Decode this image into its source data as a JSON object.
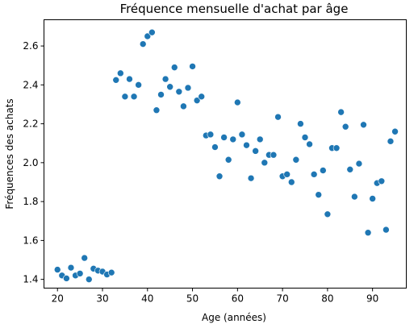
{
  "chart_data": {
    "type": "scatter",
    "title": "Fréquence mensuelle d'achat par âge",
    "xlabel": "Age (années)",
    "ylabel": "Fréquences des achats",
    "xlim": [
      17,
      97.5
    ],
    "ylim": [
      1.355,
      2.735
    ],
    "xticks": [
      20,
      30,
      40,
      50,
      60,
      70,
      80,
      90
    ],
    "xtick_labels": [
      "20",
      "30",
      "40",
      "50",
      "60",
      "70",
      "80",
      "90"
    ],
    "yticks": [
      1.4,
      1.6,
      1.8,
      2.0,
      2.2,
      2.4,
      2.6
    ],
    "ytick_labels": [
      "1.4",
      "1.6",
      "1.8",
      "2.0",
      "2.2",
      "2.4",
      "2.6"
    ],
    "grid": false,
    "legend": "none",
    "color": "#1f77b4",
    "points": [
      {
        "x": 20,
        "y": 1.45
      },
      {
        "x": 21,
        "y": 1.42
      },
      {
        "x": 22,
        "y": 1.405
      },
      {
        "x": 23,
        "y": 1.46
      },
      {
        "x": 24,
        "y": 1.42
      },
      {
        "x": 25,
        "y": 1.43
      },
      {
        "x": 26,
        "y": 1.51
      },
      {
        "x": 27,
        "y": 1.4
      },
      {
        "x": 28,
        "y": 1.455
      },
      {
        "x": 29,
        "y": 1.445
      },
      {
        "x": 30,
        "y": 1.44
      },
      {
        "x": 31,
        "y": 1.425
      },
      {
        "x": 32,
        "y": 1.435
      },
      {
        "x": 33,
        "y": 2.425
      },
      {
        "x": 34,
        "y": 2.46
      },
      {
        "x": 35,
        "y": 2.34
      },
      {
        "x": 36,
        "y": 2.43
      },
      {
        "x": 37,
        "y": 2.34
      },
      {
        "x": 38,
        "y": 2.4
      },
      {
        "x": 39,
        "y": 2.61
      },
      {
        "x": 40,
        "y": 2.65
      },
      {
        "x": 41,
        "y": 2.67
      },
      {
        "x": 42,
        "y": 2.27
      },
      {
        "x": 43,
        "y": 2.35
      },
      {
        "x": 44,
        "y": 2.43
      },
      {
        "x": 45,
        "y": 2.39
      },
      {
        "x": 46,
        "y": 2.49
      },
      {
        "x": 47,
        "y": 2.365
      },
      {
        "x": 48,
        "y": 2.29
      },
      {
        "x": 49,
        "y": 2.385
      },
      {
        "x": 50,
        "y": 2.495
      },
      {
        "x": 51,
        "y": 2.32
      },
      {
        "x": 52,
        "y": 2.34
      },
      {
        "x": 53,
        "y": 2.14
      },
      {
        "x": 54,
        "y": 2.145
      },
      {
        "x": 55,
        "y": 2.08
      },
      {
        "x": 56,
        "y": 1.93
      },
      {
        "x": 57,
        "y": 2.13
      },
      {
        "x": 58,
        "y": 2.015
      },
      {
        "x": 59,
        "y": 2.12
      },
      {
        "x": 60,
        "y": 2.31
      },
      {
        "x": 61,
        "y": 2.145
      },
      {
        "x": 62,
        "y": 2.09
      },
      {
        "x": 63,
        "y": 1.92
      },
      {
        "x": 64,
        "y": 2.06
      },
      {
        "x": 65,
        "y": 2.12
      },
      {
        "x": 66,
        "y": 2.0
      },
      {
        "x": 67,
        "y": 2.04
      },
      {
        "x": 68,
        "y": 2.04
      },
      {
        "x": 69,
        "y": 2.235
      },
      {
        "x": 70,
        "y": 1.93
      },
      {
        "x": 71,
        "y": 1.94
      },
      {
        "x": 72,
        "y": 1.9
      },
      {
        "x": 73,
        "y": 2.015
      },
      {
        "x": 74,
        "y": 2.2
      },
      {
        "x": 75,
        "y": 2.13
      },
      {
        "x": 76,
        "y": 2.095
      },
      {
        "x": 77,
        "y": 1.94
      },
      {
        "x": 78,
        "y": 1.835
      },
      {
        "x": 79,
        "y": 1.96
      },
      {
        "x": 80,
        "y": 1.735
      },
      {
        "x": 81,
        "y": 2.075
      },
      {
        "x": 82,
        "y": 2.075
      },
      {
        "x": 83,
        "y": 2.26
      },
      {
        "x": 84,
        "y": 2.185
      },
      {
        "x": 85,
        "y": 1.965
      },
      {
        "x": 86,
        "y": 1.825
      },
      {
        "x": 87,
        "y": 1.995
      },
      {
        "x": 88,
        "y": 2.195
      },
      {
        "x": 89,
        "y": 1.64
      },
      {
        "x": 90,
        "y": 1.815
      },
      {
        "x": 91,
        "y": 1.895
      },
      {
        "x": 92,
        "y": 1.905
      },
      {
        "x": 93,
        "y": 1.655
      },
      {
        "x": 94,
        "y": 2.11
      },
      {
        "x": 95,
        "y": 2.16
      }
    ]
  }
}
